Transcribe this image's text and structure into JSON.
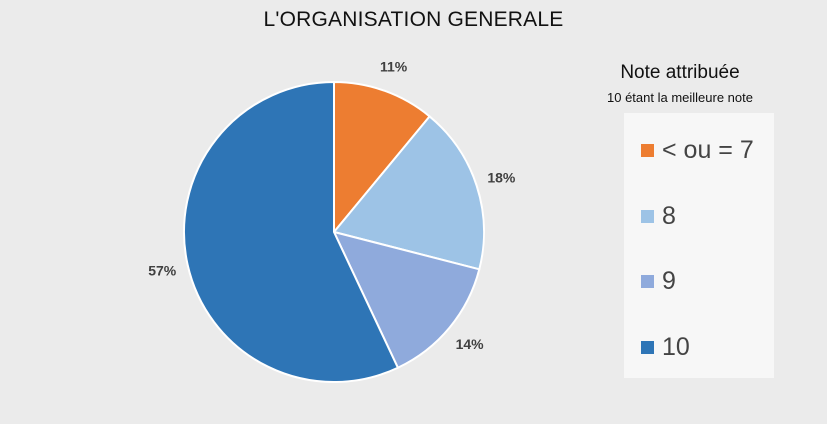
{
  "chart_data": {
    "type": "pie",
    "title": "L'ORGANISATION GENERALE",
    "legend": {
      "title": "Note attribuée",
      "subtitle": "10 étant la meilleure note",
      "placement": "right"
    },
    "slices": [
      {
        "label": "< ou = 7",
        "value": 11,
        "display": "11%",
        "color": "#ed7d31"
      },
      {
        "label": "8",
        "value": 18,
        "display": "18%",
        "color": "#9dc3e6"
      },
      {
        "label": "9",
        "value": 14,
        "display": "14%",
        "color": "#8faadc"
      },
      {
        "label": "10",
        "value": 57,
        "display": "57%",
        "color": "#2e75b6"
      }
    ]
  }
}
